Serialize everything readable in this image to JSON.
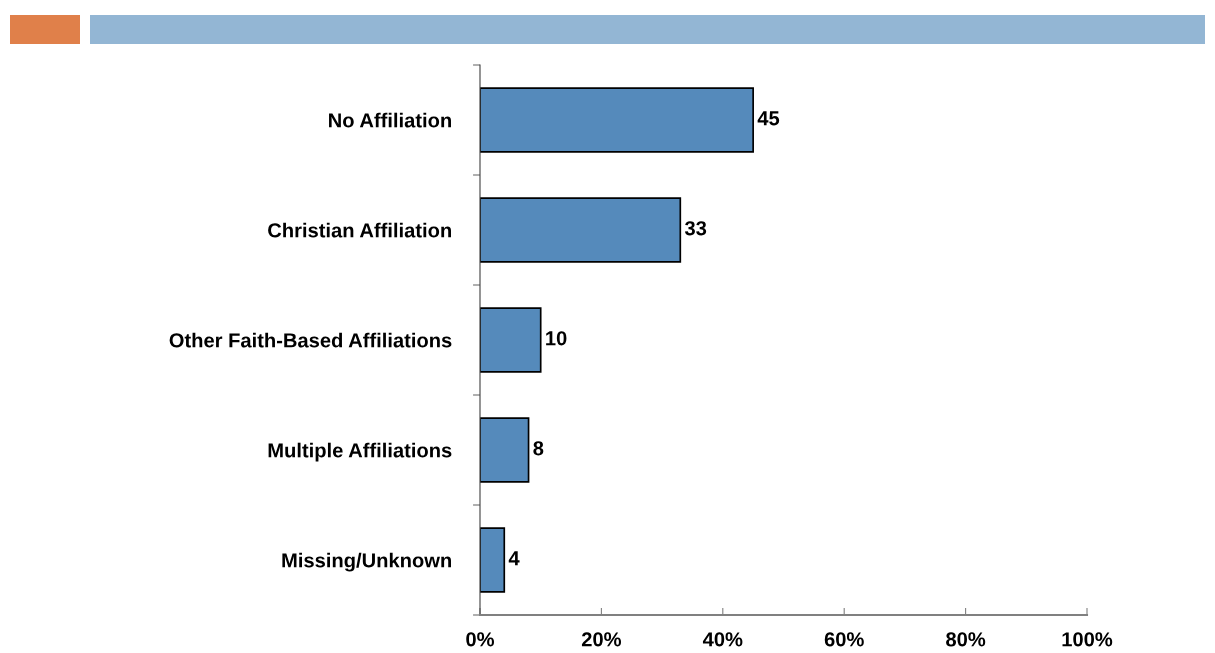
{
  "chart_data": {
    "type": "bar",
    "orientation": "horizontal",
    "categories": [
      "No Affiliation",
      "Christian Affiliation",
      "Other Faith-Based Affiliations",
      "Multiple Affiliations",
      "Missing/Unknown"
    ],
    "values": [
      45,
      33,
      10,
      8,
      4
    ],
    "color": "#558abb",
    "xlim": [
      0,
      100
    ],
    "xticks": [
      {
        "value": 0,
        "label": "0%"
      },
      {
        "value": 20,
        "label": "20%"
      },
      {
        "value": 40,
        "label": "40%"
      },
      {
        "value": 60,
        "label": "60%"
      },
      {
        "value": 80,
        "label": "80%"
      },
      {
        "value": 100,
        "label": "100%"
      }
    ],
    "data_labels": true,
    "grid": false,
    "legend": false
  }
}
